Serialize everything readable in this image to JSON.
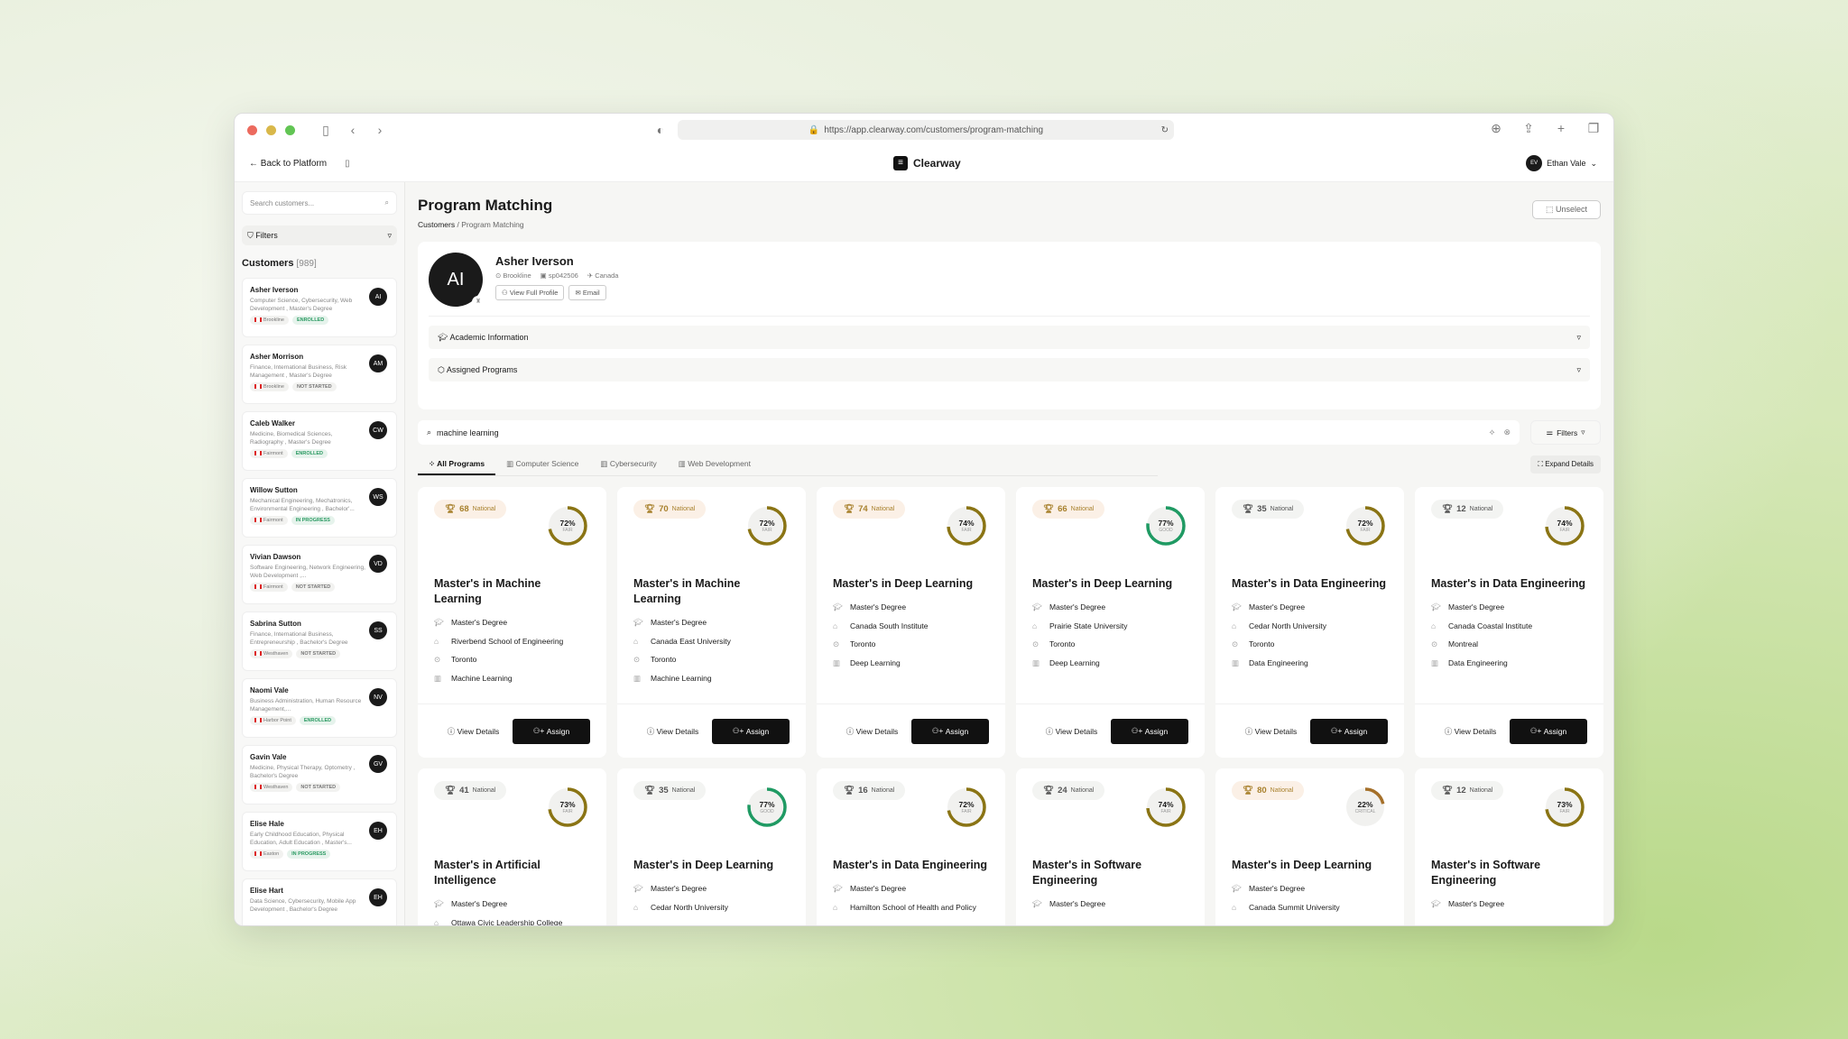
{
  "browser": {
    "url": "https://app.clearway.com/customers/program-matching"
  },
  "header": {
    "back": "Back to Platform",
    "brand": "Clearway",
    "user_initials": "EV",
    "user_name": "Ethan Vale"
  },
  "sidebar": {
    "search_placeholder": "Search customers...",
    "filters": "Filters",
    "customers_label": "Customers",
    "customers_count": "[989]",
    "customers": [
      {
        "name": "Asher Iverson",
        "details": "Computer Science, Cybersecurity, Web Development , Master's Degree",
        "city": "Brookline",
        "status": "ENROLLED",
        "initials": "AI"
      },
      {
        "name": "Asher Morrison",
        "details": "Finance, International Business, Risk Management , Master's Degree",
        "city": "Brookline",
        "status": "NOT STARTED",
        "initials": "AM"
      },
      {
        "name": "Caleb Walker",
        "details": "Medicine, Biomedical Sciences, Radiography , Master's Degree",
        "city": "Fairmont",
        "status": "ENROLLED",
        "initials": "CW"
      },
      {
        "name": "Willow Sutton",
        "details": "Mechanical Engineering, Mechatronics, Environmental Engineering , Bachelor'...",
        "city": "Fairmont",
        "status": "IN PROGRESS",
        "initials": "WS"
      },
      {
        "name": "Vivian Dawson",
        "details": "Software Engineering, Network Engineering, Web Development ,...",
        "city": "Fairmont",
        "status": "NOT STARTED",
        "initials": "VD"
      },
      {
        "name": "Sabrina Sutton",
        "details": "Finance, International Business, Entrepreneurship , Bachelor's Degree",
        "city": "Westhaven",
        "status": "NOT STARTED",
        "initials": "SS"
      },
      {
        "name": "Naomi Vale",
        "details": "Business Administration, Human Resource Management,...",
        "city": "Harbor Point",
        "status": "ENROLLED",
        "initials": "NV"
      },
      {
        "name": "Gavin Vale",
        "details": "Medicine, Physical Therapy, Optometry , Bachelor's Degree",
        "city": "Westhaven",
        "status": "NOT STARTED",
        "initials": "GV"
      },
      {
        "name": "Elise Hale",
        "details": "Early Childhood Education, Physical Education, Adult Education , Master's...",
        "city": "Easton",
        "status": "IN PROGRESS",
        "initials": "EH"
      },
      {
        "name": "Elise Hart",
        "details": "Data Science, Cybersecurity, Mobile App Development , Bachelor's Degree",
        "city": "",
        "status": "",
        "initials": "EH"
      }
    ]
  },
  "main": {
    "title": "Program Matching",
    "breadcrumb": [
      "Customers",
      "Program Matching"
    ],
    "unselect": "Unselect",
    "profile": {
      "initials": "AI",
      "name": "Asher Iverson",
      "city": "Brookline",
      "id": "sp042506",
      "country": "Canada",
      "view_profile": "View Full Profile",
      "email": "Email",
      "academic": "Academic Information",
      "assigned": "Assigned Programs"
    },
    "search": {
      "value": "machine learning",
      "filters": "Filters"
    },
    "tabs": [
      "All Programs",
      "Computer Science",
      "Cybersecurity",
      "Web Development"
    ],
    "expand": "Expand Details",
    "view_details": "View Details",
    "assign": "Assign",
    "rank_label": "National",
    "colors": {
      "fair": "#8a7414",
      "good": "#1f9a63",
      "critical": "#a5702a"
    },
    "programs": [
      {
        "rank": "68",
        "hi": true,
        "pct": 72,
        "grade": "FAIR",
        "title": "Master's in Machine Learning",
        "degree": "Master's Degree",
        "school": "Riverbend School of Engineering",
        "city": "Toronto",
        "field": "Machine Learning"
      },
      {
        "rank": "70",
        "hi": true,
        "pct": 72,
        "grade": "FAIR",
        "title": "Master's in Machine Learning",
        "degree": "Master's Degree",
        "school": "Canada East University",
        "city": "Toronto",
        "field": "Machine Learning"
      },
      {
        "rank": "74",
        "hi": true,
        "pct": 74,
        "grade": "FAIR",
        "title": "Master's in Deep Learning",
        "degree": "Master's Degree",
        "school": "Canada South Institute",
        "city": "Toronto",
        "field": "Deep Learning"
      },
      {
        "rank": "66",
        "hi": true,
        "pct": 77,
        "grade": "GOOD",
        "title": "Master's in Deep Learning",
        "degree": "Master's Degree",
        "school": "Prairie State University",
        "city": "Toronto",
        "field": "Deep Learning"
      },
      {
        "rank": "35",
        "hi": false,
        "pct": 72,
        "grade": "FAIR",
        "title": "Master's in Data Engineering",
        "degree": "Master's Degree",
        "school": "Cedar North University",
        "city": "Toronto",
        "field": "Data Engineering"
      },
      {
        "rank": "12",
        "hi": false,
        "pct": 74,
        "grade": "FAIR",
        "title": "Master's in Data Engineering",
        "degree": "Master's Degree",
        "school": "Canada Coastal Institute",
        "city": "Montreal",
        "field": "Data Engineering"
      },
      {
        "rank": "41",
        "hi": false,
        "pct": 73,
        "grade": "FAIR",
        "title": "Master's in Artificial Intelligence",
        "degree": "Master's Degree",
        "school": "Ottawa Civic Leadership College"
      },
      {
        "rank": "35",
        "hi": false,
        "pct": 77,
        "grade": "GOOD",
        "title": "Master's in Deep Learning",
        "degree": "Master's Degree",
        "school": "Cedar North University"
      },
      {
        "rank": "16",
        "hi": false,
        "pct": 72,
        "grade": "FAIR",
        "title": "Master's in Data Engineering",
        "degree": "Master's Degree",
        "school": "Hamilton School of Health and Policy"
      },
      {
        "rank": "24",
        "hi": false,
        "pct": 74,
        "grade": "FAIR",
        "title": "Master's in Software Engineering",
        "degree": "Master's Degree"
      },
      {
        "rank": "80",
        "hi": true,
        "pct": 22,
        "grade": "CRITICAL",
        "title": "Master's in Deep Learning",
        "degree": "Master's Degree",
        "school": "Canada Summit University"
      },
      {
        "rank": "12",
        "hi": false,
        "pct": 73,
        "grade": "FAIR",
        "title": "Master's in Software Engineering",
        "degree": "Master's Degree"
      }
    ]
  }
}
